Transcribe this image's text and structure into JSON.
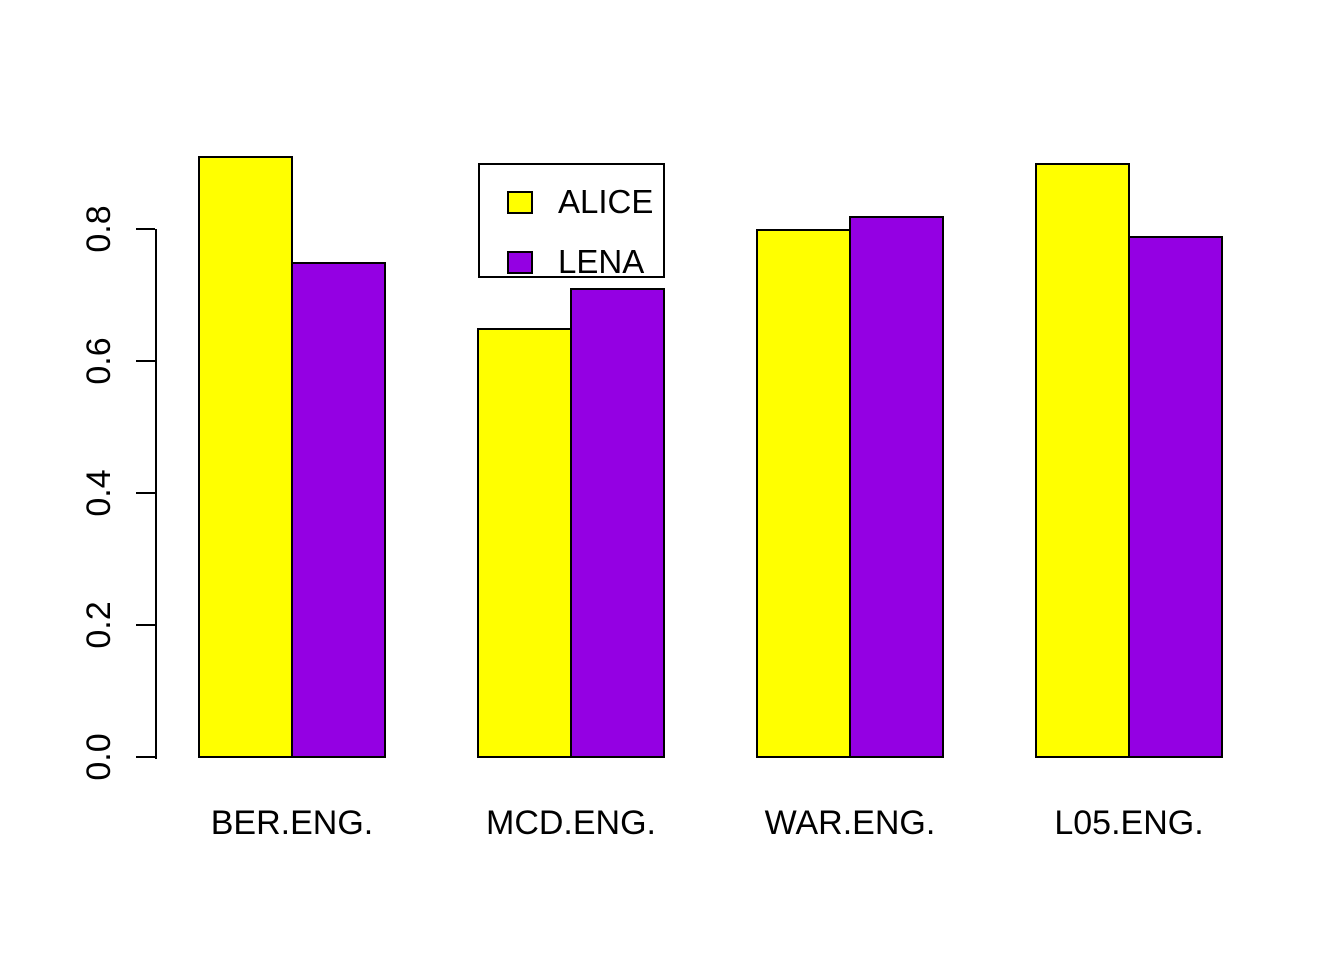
{
  "colors": {
    "background": "#FFFFFF",
    "axis": "#000000",
    "bar_border": "#000000",
    "alice": "#FFFF00",
    "lena": "#9400E3"
  },
  "legend": {
    "entries": [
      {
        "label": "ALICE",
        "color": "#FFFF00"
      },
      {
        "label": "LENA",
        "color": "#9400E3"
      }
    ]
  },
  "chart_data": {
    "type": "bar",
    "title": "",
    "xlabel": "",
    "ylabel": "",
    "categories": [
      "BER.ENG.",
      "MCD.ENG.",
      "WAR.ENG.",
      "L05.ENG."
    ],
    "series": [
      {
        "name": "ALICE",
        "color": "#FFFF00",
        "values": [
          0.91,
          0.65,
          0.8,
          0.9
        ]
      },
      {
        "name": "LENA",
        "color": "#9400E3",
        "values": [
          0.75,
          0.71,
          0.82,
          0.79
        ]
      }
    ],
    "ylim": [
      0.0,
      0.93
    ],
    "yaxis_range_drawn": [
      0.0,
      0.8
    ],
    "yticks": [
      0.0,
      0.2,
      0.4,
      0.6,
      0.8
    ],
    "ytick_labels": [
      "0.0",
      "0.2",
      "0.4",
      "0.6",
      "0.8"
    ],
    "grid": false,
    "legend_position": "top-inside-between-first-and-second-group",
    "bar_orientation": "vertical",
    "grouped": true
  }
}
